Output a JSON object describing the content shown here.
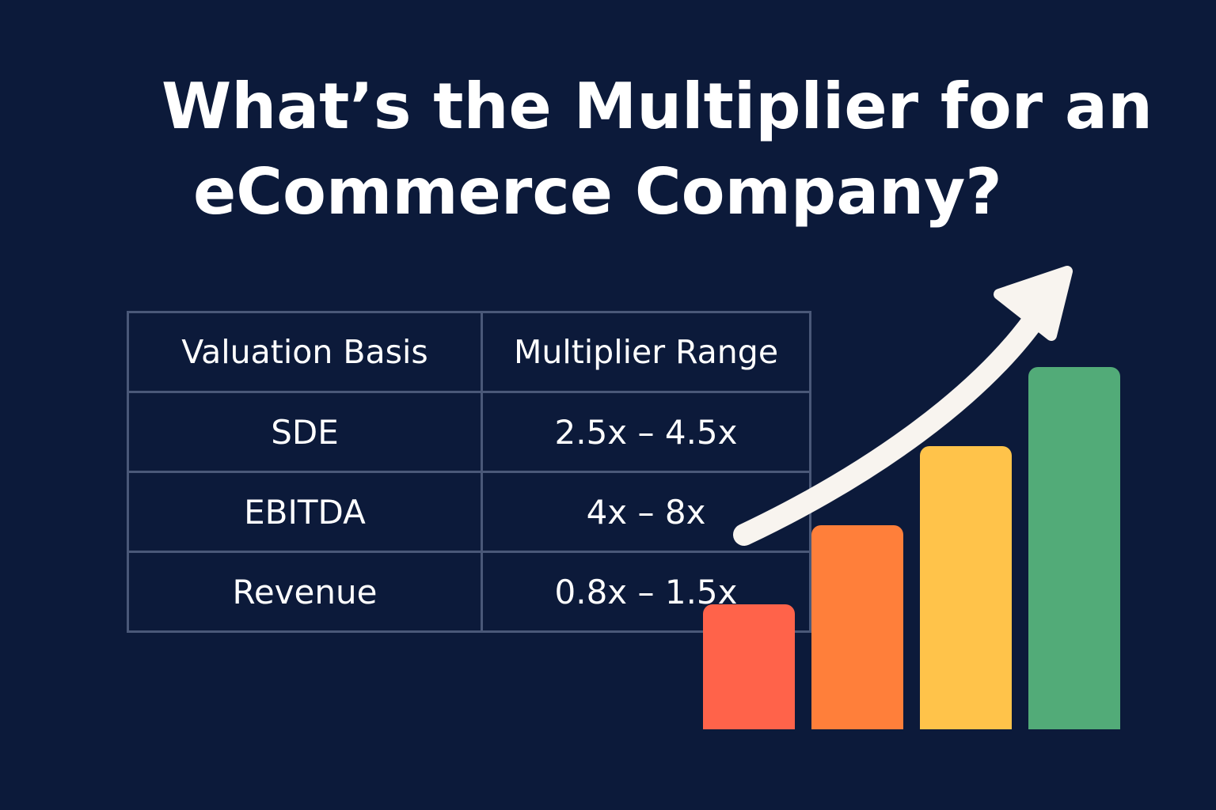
{
  "headline": {
    "line1": "What’s the Multiplier for an",
    "line2": "eCommerce Company?"
  },
  "table": {
    "headers": [
      "Valuation Basis",
      "Multiplier Range"
    ],
    "rows": [
      {
        "basis": "SDE",
        "range": "2.5x – 4.5x"
      },
      {
        "basis": "EBITDA",
        "range": "4x – 8x"
      },
      {
        "basis": "Revenue",
        "range": "0.8x – 1.5x"
      }
    ]
  },
  "colors": {
    "background": "#0c1a3a",
    "table_border": "#4a5878",
    "text": "#ffffff",
    "arrow": "#f8f4ef",
    "bars": [
      "#ff634a",
      "#ff7f3a",
      "#ffc34a",
      "#52ab78"
    ]
  },
  "illustration": {
    "type": "bar",
    "values": [
      1,
      2,
      3,
      4
    ],
    "arrow_icon": "trend-up-arrow-icon"
  }
}
